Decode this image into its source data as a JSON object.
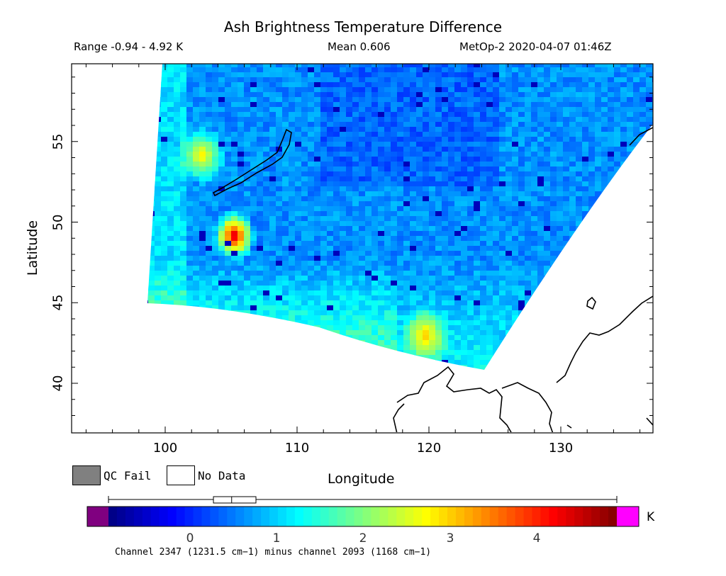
{
  "header": {
    "title": "Ash Brightness Temperature Difference",
    "range": "Range -0.94 - 4.92 K",
    "mean": "Mean 0.606",
    "satellite": "MetOp-2 2020-04-07 01:46Z"
  },
  "axes": {
    "xlabel": "Longitude",
    "ylabel": "Latitude",
    "xticks": [
      "100",
      "110",
      "120",
      "130"
    ],
    "yticks": [
      "40",
      "45",
      "50",
      "55"
    ],
    "xlim": [
      93,
      137
    ],
    "ylim": [
      37,
      60
    ]
  },
  "legend": {
    "qc_fail": {
      "label": "QC Fail",
      "color": "#808080"
    },
    "no_data": {
      "label": "No Data",
      "color": "#ffffff"
    }
  },
  "colorbar": {
    "unit": "K",
    "ticks": [
      "0",
      "1",
      "2",
      "3",
      "4"
    ],
    "range": [
      -0.94,
      4.92
    ],
    "under_color": "#800080",
    "over_color": "#ff00ff",
    "stats_box": {
      "whisker_low": -0.94,
      "q1": 0.27,
      "median": 0.48,
      "q3": 0.76,
      "whisker_high": 4.92
    }
  },
  "footnote": "Channel 2347 (1231.5 cm−1) minus channel 2093 (1168 cm−1)",
  "features": {
    "lake_baikal": "lake-outline",
    "ash_hotspots": [
      {
        "lon": 105.0,
        "lat": 49.3,
        "value": 4.6
      },
      {
        "lon": 102.5,
        "lat": 54.3,
        "value": 2.9
      },
      {
        "lon": 119.5,
        "lat": 43.1,
        "value": 3.1
      }
    ]
  }
}
